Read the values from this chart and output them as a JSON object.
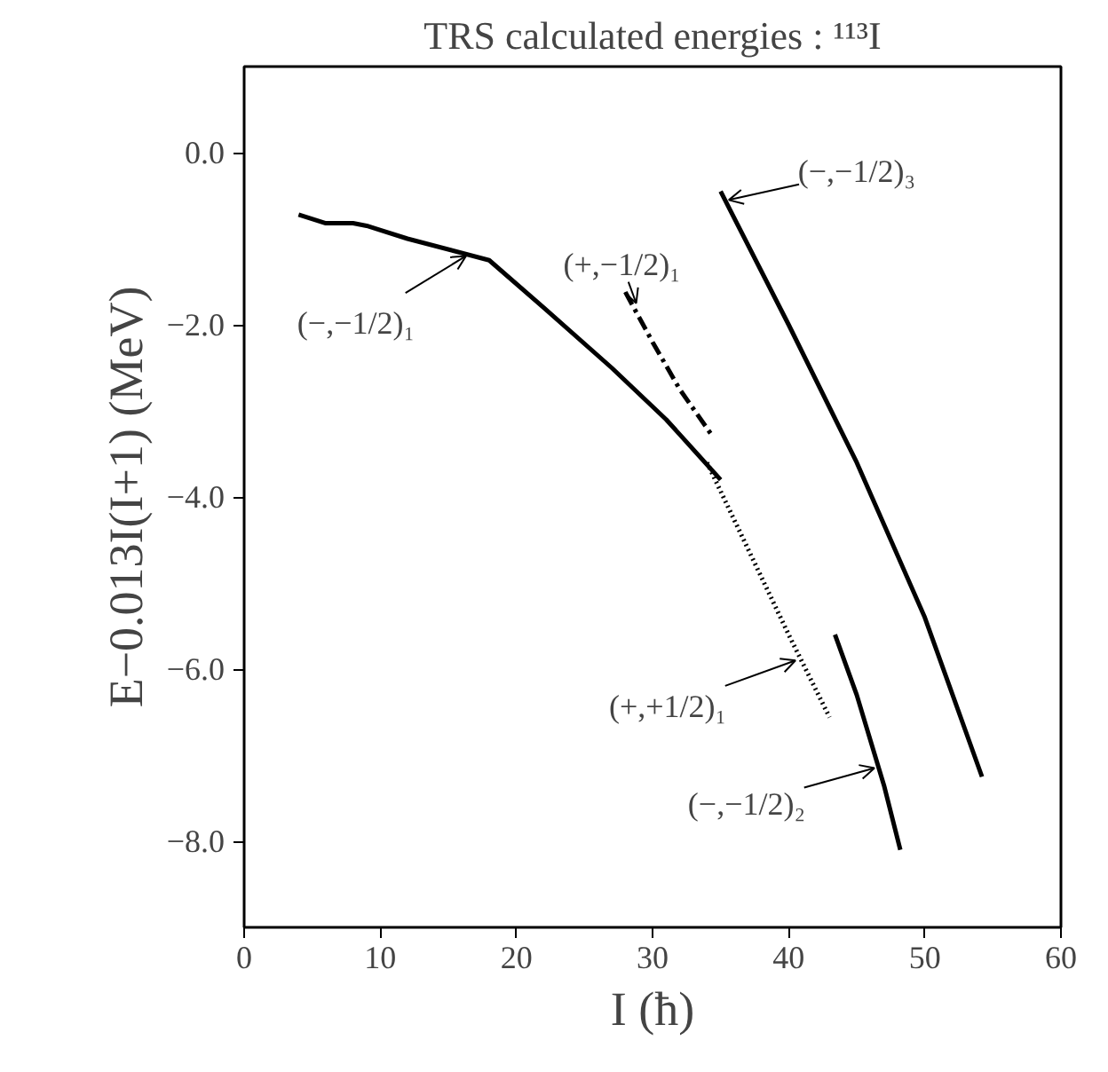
{
  "chart_data": {
    "type": "line",
    "title": "TRS calculated energies : ¹¹³I",
    "xlabel": "I (ħ)",
    "ylabel": "E−0.013I(I+1) (MeV)",
    "xlim": [
      0,
      60
    ],
    "ylim": [
      -9,
      1
    ],
    "xticks": [
      0,
      10,
      20,
      30,
      40,
      50,
      60
    ],
    "yticks": [
      {
        "value": 0,
        "label": "0.0"
      },
      {
        "value": -2,
        "label": "−2.0"
      },
      {
        "value": -4,
        "label": "−4.0"
      },
      {
        "value": -6,
        "label": "−6.0"
      },
      {
        "value": -8,
        "label": "−8.0"
      }
    ],
    "grid": false,
    "marker": "none",
    "series": [
      {
        "color": "#000000",
        "line_style": "solid",
        "x": [
          4,
          6,
          8,
          9,
          12,
          18,
          22,
          27,
          31,
          35
        ],
        "values": [
          -0.72,
          -0.82,
          -0.82,
          -0.85,
          -1.0,
          -1.25,
          -1.8,
          -2.5,
          -3.1,
          -3.8
        ]
      },
      {
        "color": "#000000",
        "line_style": "dashed",
        "x": [
          28,
          30,
          32,
          34.3
        ],
        "values": [
          -1.62,
          -2.2,
          -2.75,
          -3.27
        ]
      },
      {
        "color": "#000000",
        "line_style": "dotted",
        "x": [
          34,
          37,
          40,
          43
        ],
        "values": [
          -3.6,
          -4.6,
          -5.6,
          -6.56
        ]
      },
      {
        "color": "#000000",
        "line_style": "solid",
        "x": [
          35,
          40,
          45,
          50,
          54.2
        ],
        "values": [
          -0.45,
          -2.0,
          -3.6,
          -5.4,
          -7.25
        ]
      },
      {
        "color": "#000000",
        "line_style": "solid",
        "x": [
          43.4,
          45,
          47,
          48.2
        ],
        "values": [
          -5.6,
          -6.3,
          -7.35,
          -8.1
        ]
      }
    ],
    "annotations": [
      {
        "text": "(−,−1/2)₁",
        "x": 16.3,
        "y": -1.2
      },
      {
        "text": "(+,−1/2)₁",
        "x": 28.8,
        "y": -1.75
      },
      {
        "text": "(−,−1/2)₃",
        "x": 35.6,
        "y": -0.55
      },
      {
        "text": "(+,+1/2)₁",
        "x": 40.5,
        "y": -5.9
      },
      {
        "text": "(−,−1/2)₂",
        "x": 46.3,
        "y": -7.15
      }
    ]
  }
}
